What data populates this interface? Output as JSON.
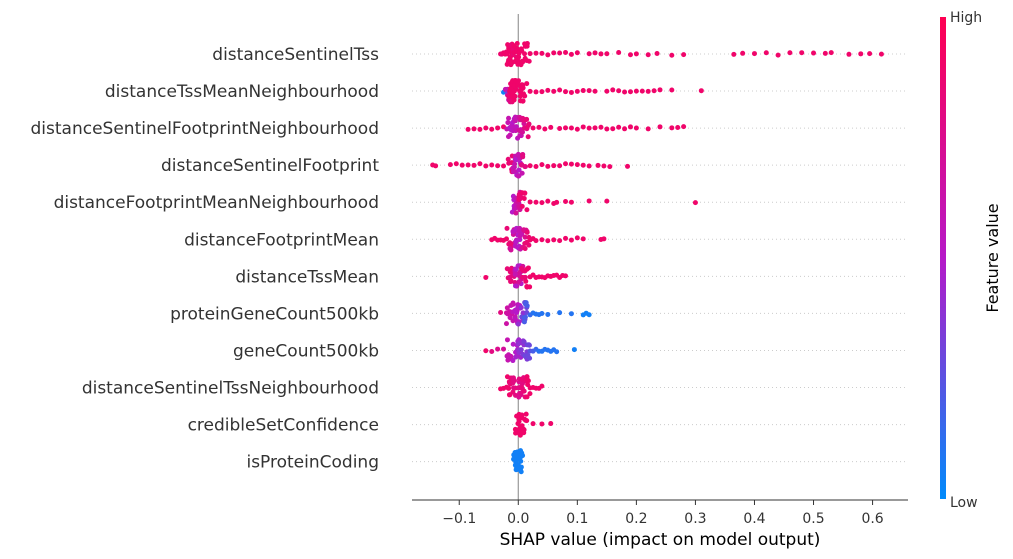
{
  "chart_data": {
    "type": "scatter",
    "subtype": "shap-beeswarm",
    "xlabel": "SHAP value (impact on model output)",
    "xlim": [
      -0.18,
      0.66
    ],
    "xticks": [
      -0.1,
      0.0,
      0.1,
      0.2,
      0.3,
      0.4,
      0.5,
      0.6
    ],
    "xtick_labels": [
      "−0.1",
      "0.0",
      "0.1",
      "0.2",
      "0.3",
      "0.4",
      "0.5",
      "0.6"
    ],
    "zero_line": 0.0,
    "colorbar": {
      "title": "Feature value",
      "high_label": "High",
      "low_label": "Low",
      "high_color": "#ff0052",
      "mid_color": "#b619c8",
      "low_color": "#008bfb"
    },
    "features": [
      {
        "name": "distanceSentinelTss",
        "points": [
          [
            -0.03,
            0.9
          ],
          [
            -0.028,
            0.85
          ],
          [
            -0.025,
            0.9
          ],
          [
            -0.022,
            0.9
          ],
          [
            -0.02,
            0.9
          ],
          [
            -0.018,
            0.9
          ],
          [
            -0.015,
            0.9
          ],
          [
            -0.012,
            0.9
          ],
          [
            -0.01,
            0.9
          ],
          [
            -0.008,
            0.85
          ],
          [
            -0.005,
            0.9
          ],
          [
            0.0,
            0.9
          ],
          [
            0.005,
            0.9
          ],
          [
            0.01,
            0.9
          ],
          [
            0.015,
            0.9
          ],
          [
            0.02,
            0.9
          ],
          [
            0.03,
            0.9
          ],
          [
            0.04,
            0.9
          ],
          [
            0.05,
            0.9
          ],
          [
            0.06,
            0.9
          ],
          [
            0.07,
            0.9
          ],
          [
            0.08,
            0.9
          ],
          [
            0.09,
            0.9
          ],
          [
            0.1,
            0.9
          ],
          [
            0.12,
            0.9
          ],
          [
            0.13,
            0.9
          ],
          [
            0.14,
            0.9
          ],
          [
            0.15,
            0.9
          ],
          [
            0.17,
            0.9
          ],
          [
            0.19,
            0.9
          ],
          [
            0.2,
            0.9
          ],
          [
            0.22,
            0.9
          ],
          [
            0.235,
            0.9
          ],
          [
            0.26,
            0.9
          ],
          [
            0.28,
            0.9
          ],
          [
            0.365,
            0.9
          ],
          [
            0.38,
            0.9
          ],
          [
            0.4,
            0.9
          ],
          [
            0.42,
            0.9
          ],
          [
            0.44,
            0.9
          ],
          [
            0.46,
            0.9
          ],
          [
            0.48,
            0.9
          ],
          [
            0.5,
            0.9
          ],
          [
            0.52,
            0.9
          ],
          [
            0.53,
            0.9
          ],
          [
            0.56,
            0.9
          ],
          [
            0.58,
            0.9
          ],
          [
            0.595,
            0.9
          ],
          [
            0.615,
            0.9
          ]
        ]
      },
      {
        "name": "distanceTssMeanNeighbourhood",
        "points": [
          [
            -0.025,
            0.05
          ],
          [
            -0.02,
            0.3
          ],
          [
            -0.018,
            0.6
          ],
          [
            -0.015,
            0.8
          ],
          [
            -0.012,
            0.85
          ],
          [
            -0.01,
            0.9
          ],
          [
            -0.008,
            0.9
          ],
          [
            -0.005,
            0.9
          ],
          [
            0.0,
            0.9
          ],
          [
            0.005,
            0.9
          ],
          [
            0.01,
            0.9
          ],
          [
            0.02,
            0.9
          ],
          [
            0.03,
            0.9
          ],
          [
            0.04,
            0.9
          ],
          [
            0.05,
            0.9
          ],
          [
            0.06,
            0.9
          ],
          [
            0.07,
            0.9
          ],
          [
            0.08,
            0.9
          ],
          [
            0.09,
            0.9
          ],
          [
            0.1,
            0.9
          ],
          [
            0.11,
            0.9
          ],
          [
            0.12,
            0.9
          ],
          [
            0.13,
            0.9
          ],
          [
            0.15,
            0.9
          ],
          [
            0.16,
            0.9
          ],
          [
            0.17,
            0.9
          ],
          [
            0.18,
            0.9
          ],
          [
            0.19,
            0.9
          ],
          [
            0.2,
            0.9
          ],
          [
            0.21,
            0.9
          ],
          [
            0.22,
            0.9
          ],
          [
            0.23,
            0.9
          ],
          [
            0.24,
            0.9
          ],
          [
            0.26,
            0.9
          ],
          [
            0.31,
            0.9
          ]
        ]
      },
      {
        "name": "distanceSentinelFootprintNeighbourhood",
        "points": [
          [
            -0.085,
            0.9
          ],
          [
            -0.075,
            0.9
          ],
          [
            -0.065,
            0.9
          ],
          [
            -0.055,
            0.9
          ],
          [
            -0.045,
            0.9
          ],
          [
            -0.035,
            0.9
          ],
          [
            -0.025,
            0.9
          ],
          [
            -0.015,
            0.6
          ],
          [
            -0.01,
            0.5
          ],
          [
            -0.005,
            0.55
          ],
          [
            0.0,
            0.6
          ],
          [
            0.005,
            0.7
          ],
          [
            0.01,
            0.8
          ],
          [
            0.015,
            0.85
          ],
          [
            0.025,
            0.9
          ],
          [
            0.035,
            0.9
          ],
          [
            0.045,
            0.9
          ],
          [
            0.055,
            0.9
          ],
          [
            0.07,
            0.9
          ],
          [
            0.08,
            0.9
          ],
          [
            0.09,
            0.9
          ],
          [
            0.1,
            0.9
          ],
          [
            0.11,
            0.9
          ],
          [
            0.12,
            0.9
          ],
          [
            0.13,
            0.9
          ],
          [
            0.14,
            0.9
          ],
          [
            0.15,
            0.9
          ],
          [
            0.16,
            0.9
          ],
          [
            0.17,
            0.9
          ],
          [
            0.18,
            0.9
          ],
          [
            0.19,
            0.9
          ],
          [
            0.2,
            0.9
          ],
          [
            0.22,
            0.9
          ],
          [
            0.24,
            0.9
          ],
          [
            0.26,
            0.9
          ],
          [
            0.27,
            0.9
          ],
          [
            0.28,
            0.9
          ]
        ]
      },
      {
        "name": "distanceSentinelFootprint",
        "points": [
          [
            -0.145,
            0.9
          ],
          [
            -0.14,
            0.9
          ],
          [
            -0.115,
            0.9
          ],
          [
            -0.105,
            0.9
          ],
          [
            -0.095,
            0.9
          ],
          [
            -0.085,
            0.9
          ],
          [
            -0.075,
            0.9
          ],
          [
            -0.065,
            0.9
          ],
          [
            -0.055,
            0.9
          ],
          [
            -0.045,
            0.9
          ],
          [
            -0.035,
            0.9
          ],
          [
            -0.025,
            0.9
          ],
          [
            -0.015,
            0.85
          ],
          [
            -0.005,
            0.6
          ],
          [
            0.0,
            0.5
          ],
          [
            0.005,
            0.6
          ],
          [
            0.01,
            0.8
          ],
          [
            0.02,
            0.9
          ],
          [
            0.03,
            0.9
          ],
          [
            0.04,
            0.9
          ],
          [
            0.05,
            0.9
          ],
          [
            0.06,
            0.9
          ],
          [
            0.07,
            0.9
          ],
          [
            0.08,
            0.9
          ],
          [
            0.09,
            0.9
          ],
          [
            0.1,
            0.9
          ],
          [
            0.11,
            0.9
          ],
          [
            0.12,
            0.9
          ],
          [
            0.135,
            0.9
          ],
          [
            0.145,
            0.9
          ],
          [
            0.155,
            0.9
          ],
          [
            0.185,
            0.9
          ]
        ]
      },
      {
        "name": "distanceFootprintMeanNeighbourhood",
        "points": [
          [
            -0.005,
            0.5
          ],
          [
            -0.002,
            0.6
          ],
          [
            0.0,
            0.7
          ],
          [
            0.005,
            0.85
          ],
          [
            0.01,
            0.9
          ],
          [
            0.02,
            0.9
          ],
          [
            0.03,
            0.9
          ],
          [
            0.04,
            0.9
          ],
          [
            0.05,
            0.9
          ],
          [
            0.06,
            0.9
          ],
          [
            0.065,
            0.9
          ],
          [
            0.08,
            0.9
          ],
          [
            0.09,
            0.9
          ],
          [
            0.12,
            0.9
          ],
          [
            0.15,
            0.9
          ],
          [
            0.3,
            0.9
          ]
        ]
      },
      {
        "name": "distanceFootprintMean",
        "points": [
          [
            -0.045,
            0.9
          ],
          [
            -0.04,
            0.9
          ],
          [
            -0.035,
            0.9
          ],
          [
            -0.03,
            0.9
          ],
          [
            -0.025,
            0.9
          ],
          [
            -0.02,
            0.9
          ],
          [
            -0.015,
            0.85
          ],
          [
            -0.01,
            0.7
          ],
          [
            -0.005,
            0.55
          ],
          [
            0.0,
            0.5
          ],
          [
            0.005,
            0.6
          ],
          [
            0.01,
            0.75
          ],
          [
            0.015,
            0.85
          ],
          [
            0.02,
            0.9
          ],
          [
            0.025,
            0.9
          ],
          [
            0.03,
            0.9
          ],
          [
            0.04,
            0.9
          ],
          [
            0.05,
            0.9
          ],
          [
            0.06,
            0.9
          ],
          [
            0.07,
            0.9
          ],
          [
            0.08,
            0.9
          ],
          [
            0.09,
            0.9
          ],
          [
            0.1,
            0.9
          ],
          [
            0.11,
            0.9
          ],
          [
            0.14,
            0.9
          ],
          [
            0.145,
            0.9
          ]
        ]
      },
      {
        "name": "distanceTssMean",
        "points": [
          [
            -0.055,
            0.9
          ],
          [
            -0.015,
            0.85
          ],
          [
            -0.01,
            0.8
          ],
          [
            -0.005,
            0.6
          ],
          [
            0.0,
            0.5
          ],
          [
            0.005,
            0.7
          ],
          [
            0.01,
            0.85
          ],
          [
            0.015,
            0.9
          ],
          [
            0.02,
            0.9
          ],
          [
            0.025,
            0.9
          ],
          [
            0.03,
            0.9
          ],
          [
            0.035,
            0.9
          ],
          [
            0.04,
            0.9
          ],
          [
            0.045,
            0.9
          ],
          [
            0.05,
            0.9
          ],
          [
            0.055,
            0.9
          ],
          [
            0.06,
            0.9
          ],
          [
            0.065,
            0.9
          ],
          [
            0.07,
            0.9
          ],
          [
            0.075,
            0.9
          ],
          [
            0.08,
            0.9
          ]
        ]
      },
      {
        "name": "proteinGeneCount500kb",
        "points": [
          [
            -0.03,
            0.8
          ],
          [
            -0.02,
            0.7
          ],
          [
            -0.015,
            0.65
          ],
          [
            -0.01,
            0.6
          ],
          [
            -0.005,
            0.55
          ],
          [
            0.0,
            0.5
          ],
          [
            0.005,
            0.4
          ],
          [
            0.01,
            0.3
          ],
          [
            0.015,
            0.2
          ],
          [
            0.02,
            0.15
          ],
          [
            0.025,
            0.1
          ],
          [
            0.03,
            0.1
          ],
          [
            0.035,
            0.1
          ],
          [
            0.04,
            0.1
          ],
          [
            0.05,
            0.1
          ],
          [
            0.07,
            0.1
          ],
          [
            0.09,
            0.1
          ],
          [
            0.11,
            0.05
          ],
          [
            0.115,
            0.05
          ],
          [
            0.12,
            0.05
          ]
        ]
      },
      {
        "name": "geneCount500kb",
        "points": [
          [
            -0.055,
            0.9
          ],
          [
            -0.045,
            0.8
          ],
          [
            -0.035,
            0.75
          ],
          [
            -0.025,
            0.7
          ],
          [
            -0.015,
            0.6
          ],
          [
            -0.005,
            0.5
          ],
          [
            0.0,
            0.45
          ],
          [
            0.005,
            0.4
          ],
          [
            0.01,
            0.35
          ],
          [
            0.015,
            0.3
          ],
          [
            0.02,
            0.25
          ],
          [
            0.025,
            0.2
          ],
          [
            0.03,
            0.15
          ],
          [
            0.035,
            0.1
          ],
          [
            0.04,
            0.1
          ],
          [
            0.045,
            0.1
          ],
          [
            0.05,
            0.1
          ],
          [
            0.055,
            0.1
          ],
          [
            0.06,
            0.1
          ],
          [
            0.065,
            0.1
          ],
          [
            0.095,
            0.05
          ]
        ]
      },
      {
        "name": "distanceSentinelTssNeighbourhood",
        "points": [
          [
            -0.03,
            0.9
          ],
          [
            -0.025,
            0.9
          ],
          [
            -0.02,
            0.9
          ],
          [
            -0.015,
            0.9
          ],
          [
            -0.01,
            0.85
          ],
          [
            -0.005,
            0.8
          ],
          [
            0.0,
            0.75
          ],
          [
            0.005,
            0.8
          ],
          [
            0.01,
            0.85
          ],
          [
            0.015,
            0.9
          ],
          [
            0.02,
            0.9
          ],
          [
            0.025,
            0.9
          ],
          [
            0.03,
            0.9
          ],
          [
            0.035,
            0.9
          ],
          [
            0.04,
            0.9
          ]
        ]
      },
      {
        "name": "credibleSetConfidence",
        "points": [
          [
            -0.002,
            0.9
          ],
          [
            0.0,
            0.9
          ],
          [
            0.002,
            0.9
          ],
          [
            0.005,
            0.9
          ],
          [
            0.01,
            0.9
          ],
          [
            0.025,
            0.9
          ],
          [
            0.04,
            0.9
          ],
          [
            0.055,
            0.9
          ]
        ]
      },
      {
        "name": "isProteinCoding",
        "points": [
          [
            -0.003,
            0.05
          ],
          [
            -0.001,
            0.05
          ],
          [
            0.0,
            0.05
          ],
          [
            0.001,
            0.05
          ],
          [
            0.003,
            0.05
          ]
        ]
      }
    ]
  }
}
